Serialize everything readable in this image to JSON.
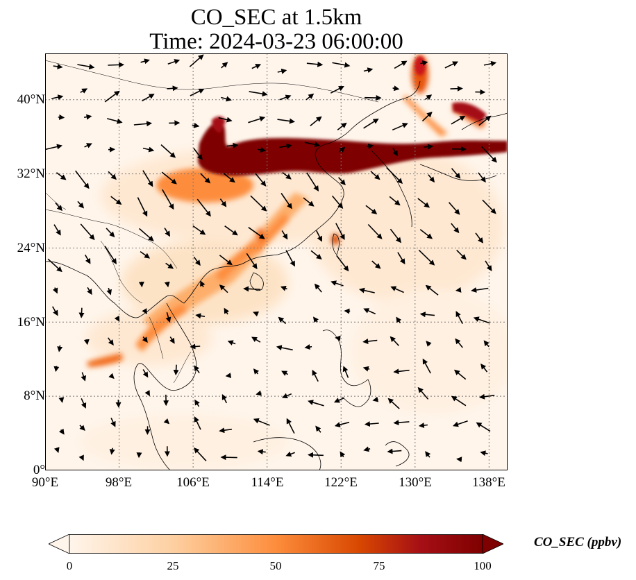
{
  "title": {
    "line1": "CO_SEC at 1.5km",
    "line2": "Time: 2024-03-23 06:00:00"
  },
  "map": {
    "lon_range": [
      90,
      140
    ],
    "lat_range": [
      0,
      45
    ],
    "lat_ticks": [
      "0°",
      "8°N",
      "16°N",
      "24°N",
      "32°N",
      "40°N"
    ],
    "lon_ticks": [
      "90°E",
      "98°E",
      "106°E",
      "114°E",
      "122°E",
      "130°E",
      "138°E"
    ],
    "gridlines": true,
    "field": "CO_SEC",
    "overlay": "wind vectors"
  },
  "colorbar": {
    "label": "CO_SEC (ppbv)",
    "ticks": [
      "0",
      "25",
      "50",
      "75",
      "100"
    ],
    "range": [
      0,
      100
    ],
    "extend": "both",
    "colors": [
      "#fff5eb",
      "#fdd0a2",
      "#fd8d3c",
      "#d94801",
      "#a50f15",
      "#7f0000"
    ]
  }
}
